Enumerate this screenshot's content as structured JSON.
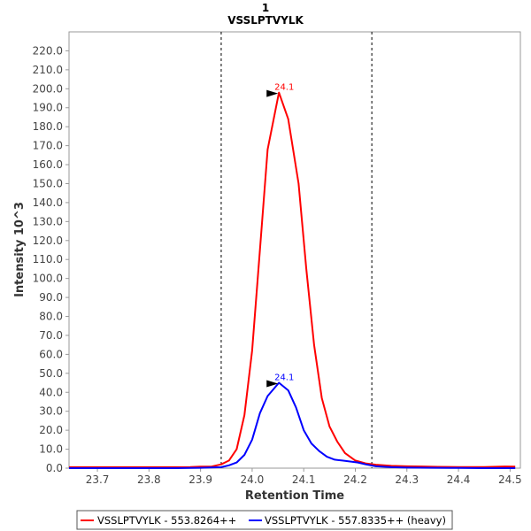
{
  "chart_data": {
    "type": "line",
    "title": "1",
    "subtitle": "VSSLPTVYLK",
    "xlabel": "Retention Time",
    "ylabel": "Intensity 10^3",
    "xlim": [
      23.645,
      24.52
    ],
    "ylim": [
      0,
      230
    ],
    "x_ticks": [
      "23.7",
      "23.8",
      "23.9",
      "24.0",
      "24.1",
      "24.2",
      "24.3",
      "24.4",
      "24.5"
    ],
    "y_ticks": [
      "0.0",
      "10.0",
      "20.0",
      "30.0",
      "40.0",
      "50.0",
      "60.0",
      "70.0",
      "80.0",
      "90.0",
      "100.0",
      "110.0",
      "120.0",
      "130.0",
      "140.0",
      "150.0",
      "160.0",
      "170.0",
      "180.0",
      "190.0",
      "200.0",
      "210.0",
      "220.0"
    ],
    "integration_bounds": [
      23.94,
      24.232
    ],
    "legend_position": "bottom",
    "grid": false,
    "series": [
      {
        "name": "VSSLPTVYLK - 553.8264++",
        "color": "#ff0000",
        "peak_label": "24.1",
        "peak": {
          "x": 24.052,
          "y": 198
        },
        "points": [
          [
            23.645,
            0.5
          ],
          [
            23.7,
            0.5
          ],
          [
            23.75,
            0.5
          ],
          [
            23.8,
            0.5
          ],
          [
            23.85,
            0.5
          ],
          [
            23.88,
            0.6
          ],
          [
            23.9,
            0.8
          ],
          [
            23.92,
            0.8
          ],
          [
            23.94,
            2
          ],
          [
            23.955,
            4
          ],
          [
            23.97,
            10
          ],
          [
            23.985,
            28
          ],
          [
            24.0,
            62
          ],
          [
            24.015,
            115
          ],
          [
            24.03,
            168
          ],
          [
            24.052,
            198
          ],
          [
            24.07,
            184
          ],
          [
            24.09,
            150
          ],
          [
            24.105,
            105
          ],
          [
            24.12,
            65
          ],
          [
            24.135,
            37
          ],
          [
            24.15,
            22
          ],
          [
            24.165,
            14
          ],
          [
            24.18,
            8
          ],
          [
            24.2,
            4
          ],
          [
            24.22,
            2.5
          ],
          [
            24.24,
            1.8
          ],
          [
            24.27,
            1.2
          ],
          [
            24.3,
            1.0
          ],
          [
            24.33,
            0.9
          ],
          [
            24.36,
            0.7
          ],
          [
            24.4,
            0.6
          ],
          [
            24.45,
            0.6
          ],
          [
            24.49,
            0.9
          ],
          [
            24.51,
            0.8
          ]
        ]
      },
      {
        "name": "VSSLPTVYLK - 557.8335++ (heavy)",
        "color": "#0000ff",
        "peak_label": "24.1",
        "peak": {
          "x": 24.052,
          "y": 45
        },
        "points": [
          [
            23.645,
            0
          ],
          [
            23.7,
            0
          ],
          [
            23.75,
            0
          ],
          [
            23.8,
            0
          ],
          [
            23.85,
            0
          ],
          [
            23.9,
            0.2
          ],
          [
            23.94,
            0.5
          ],
          [
            23.955,
            1.5
          ],
          [
            23.97,
            3
          ],
          [
            23.985,
            7
          ],
          [
            24.0,
            15
          ],
          [
            24.015,
            29
          ],
          [
            24.03,
            38
          ],
          [
            24.052,
            45
          ],
          [
            24.07,
            41
          ],
          [
            24.085,
            32
          ],
          [
            24.1,
            20
          ],
          [
            24.115,
            13
          ],
          [
            24.13,
            9
          ],
          [
            24.145,
            6
          ],
          [
            24.16,
            4.5
          ],
          [
            24.175,
            4
          ],
          [
            24.19,
            3.5
          ],
          [
            24.205,
            3
          ],
          [
            24.22,
            2
          ],
          [
            24.24,
            1
          ],
          [
            24.27,
            0.5
          ],
          [
            24.3,
            0.3
          ],
          [
            24.35,
            0.2
          ],
          [
            24.4,
            0.1
          ],
          [
            24.45,
            0
          ],
          [
            24.51,
            0
          ]
        ]
      }
    ]
  }
}
